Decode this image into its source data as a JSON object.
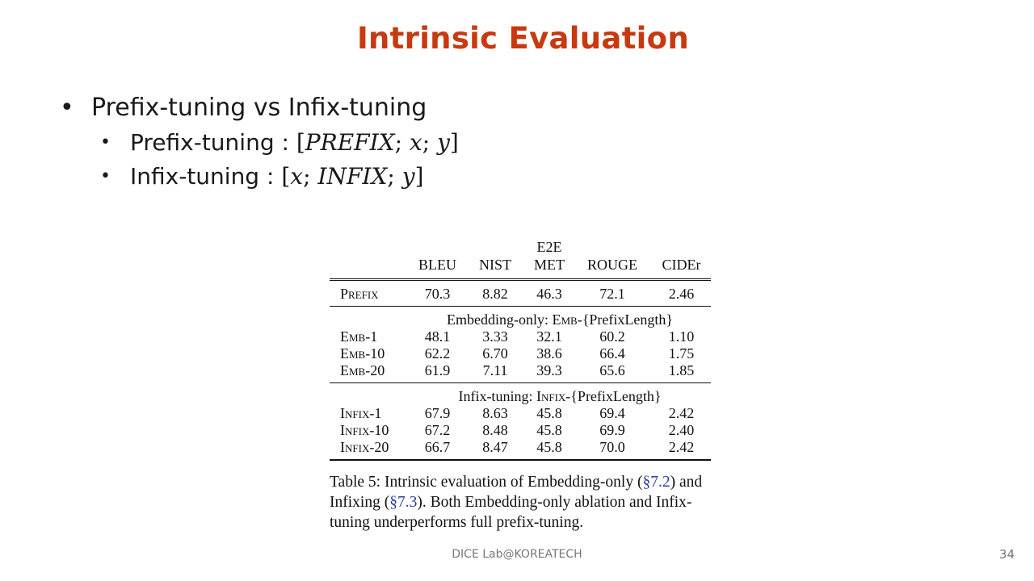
{
  "slide": {
    "title": "Intrinsic Evaluation",
    "bullets": {
      "main": "Prefix-tuning vs Infix-tuning",
      "sub1": {
        "label": "Prefix-tuning : ",
        "seq": [
          "PREFIX",
          "x",
          "y"
        ]
      },
      "sub2": {
        "label": "Infix-tuning : ",
        "seq": [
          "x",
          "INFIX",
          "y"
        ]
      }
    },
    "footer": "DICE  Lab@KOREATECH",
    "page_number": "34"
  },
  "table": {
    "group_header": "E2E",
    "columns": [
      "BLEU",
      "NIST",
      "MET",
      "ROUGE",
      "CIDEr"
    ],
    "prefix_row": {
      "label": "Prefix",
      "values": [
        "70.3",
        "8.82",
        "46.3",
        "72.1",
        "2.46"
      ]
    },
    "section1": {
      "title_before": "Embedding-only: ",
      "title_sc": "Emb",
      "title_after": "-{PrefixLength}",
      "rows": [
        {
          "label": "Emb-1",
          "values": [
            "48.1",
            "3.33",
            "32.1",
            "60.2",
            "1.10"
          ]
        },
        {
          "label": "Emb-10",
          "values": [
            "62.2",
            "6.70",
            "38.6",
            "66.4",
            "1.75"
          ]
        },
        {
          "label": "Emb-20",
          "values": [
            "61.9",
            "7.11",
            "39.3",
            "65.6",
            "1.85"
          ]
        }
      ]
    },
    "section2": {
      "title_before": "Infix-tuning: ",
      "title_sc": "Infix",
      "title_after": "-{PrefixLength}",
      "rows": [
        {
          "label": "Infix-1",
          "values": [
            "67.9",
            "8.63",
            "45.8",
            "69.4",
            "2.42"
          ]
        },
        {
          "label": "Infix-10",
          "values": [
            "67.2",
            "8.48",
            "45.8",
            "69.9",
            "2.40"
          ]
        },
        {
          "label": "Infix-20",
          "values": [
            "66.7",
            "8.47",
            "45.8",
            "70.0",
            "2.42"
          ]
        }
      ]
    }
  },
  "caption": {
    "part1": "Table 5:  Intrinsic evaluation of Embedding-only (",
    "ref1": "§7.2",
    "part2": ") and Infixing (",
    "ref2": "§7.3",
    "part3": "). Both Embedding-only ablation and Infix-tuning underperforms full prefix-tuning."
  }
}
